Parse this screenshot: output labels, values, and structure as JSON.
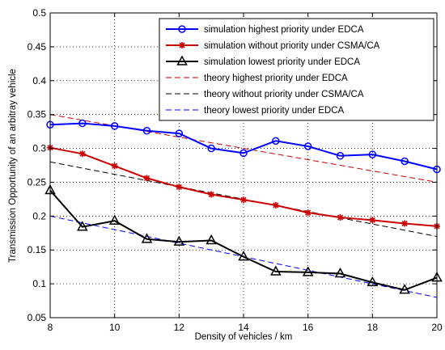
{
  "chart_data": {
    "type": "line",
    "xlabel": "Density of vehicles / km",
    "ylabel": "Transmission Opportunity of an arbitray vehicle",
    "xlim": [
      8,
      20
    ],
    "ylim": [
      0.05,
      0.5
    ],
    "xticks": [
      8,
      10,
      12,
      14,
      16,
      18,
      20
    ],
    "xtick_labels": [
      "8",
      "10",
      "12",
      "14",
      "16",
      "18",
      "20"
    ],
    "yticks": [
      0.05,
      0.1,
      0.15,
      0.2,
      0.25,
      0.3,
      0.35,
      0.4,
      0.45,
      0.5
    ],
    "ytick_labels": [
      "0.05",
      "0.1",
      "0.15",
      "0.2",
      "0.25",
      "0.3",
      "0.35",
      "0.4",
      "0.45",
      "0.5"
    ],
    "grid": true,
    "legend_position": "top-right",
    "series": [
      {
        "name": "simulation highest priority under EDCA",
        "color": "#0000ff",
        "line_style": "solid",
        "marker": "circle",
        "x": [
          8,
          9,
          10,
          11,
          12,
          13,
          14,
          15,
          16,
          17,
          18,
          19,
          20
        ],
        "y": [
          0.335,
          0.337,
          0.333,
          0.326,
          0.322,
          0.3,
          0.293,
          0.311,
          0.303,
          0.289,
          0.291,
          0.281,
          0.269
        ]
      },
      {
        "name": "simulation without priority under CSMA/CA",
        "color": "#cc0000",
        "line_style": "solid",
        "marker": "star",
        "x": [
          8,
          9,
          10,
          11,
          12,
          13,
          14,
          15,
          16,
          17,
          18,
          19,
          20
        ],
        "y": [
          0.301,
          0.292,
          0.274,
          0.256,
          0.243,
          0.232,
          0.224,
          0.216,
          0.205,
          0.198,
          0.194,
          0.189,
          0.185
        ]
      },
      {
        "name": "simulation lowest priority under EDCA",
        "color": "#000000",
        "line_style": "solid",
        "marker": "triangle",
        "x": [
          8,
          9,
          10,
          11,
          12,
          13,
          14,
          15,
          16,
          17,
          18,
          19,
          20
        ],
        "y": [
          0.238,
          0.184,
          0.193,
          0.166,
          0.162,
          0.164,
          0.14,
          0.118,
          0.117,
          0.115,
          0.102,
          0.091,
          0.109
        ]
      },
      {
        "name": "theory highest priority under EDCA",
        "color": "#cc0000",
        "line_style": "dashed",
        "marker": "none",
        "x": [
          8,
          20
        ],
        "y": [
          0.35,
          0.25
        ]
      },
      {
        "name": "theory without priority under CSMA/CA",
        "color": "#000000",
        "line_style": "dashed",
        "marker": "none",
        "x": [
          8,
          20
        ],
        "y": [
          0.28,
          0.17
        ]
      },
      {
        "name": "theory lowest priority under EDCA",
        "color": "#0000ff",
        "line_style": "dashed",
        "marker": "none",
        "x": [
          8,
          20
        ],
        "y": [
          0.2,
          0.08
        ]
      }
    ]
  }
}
